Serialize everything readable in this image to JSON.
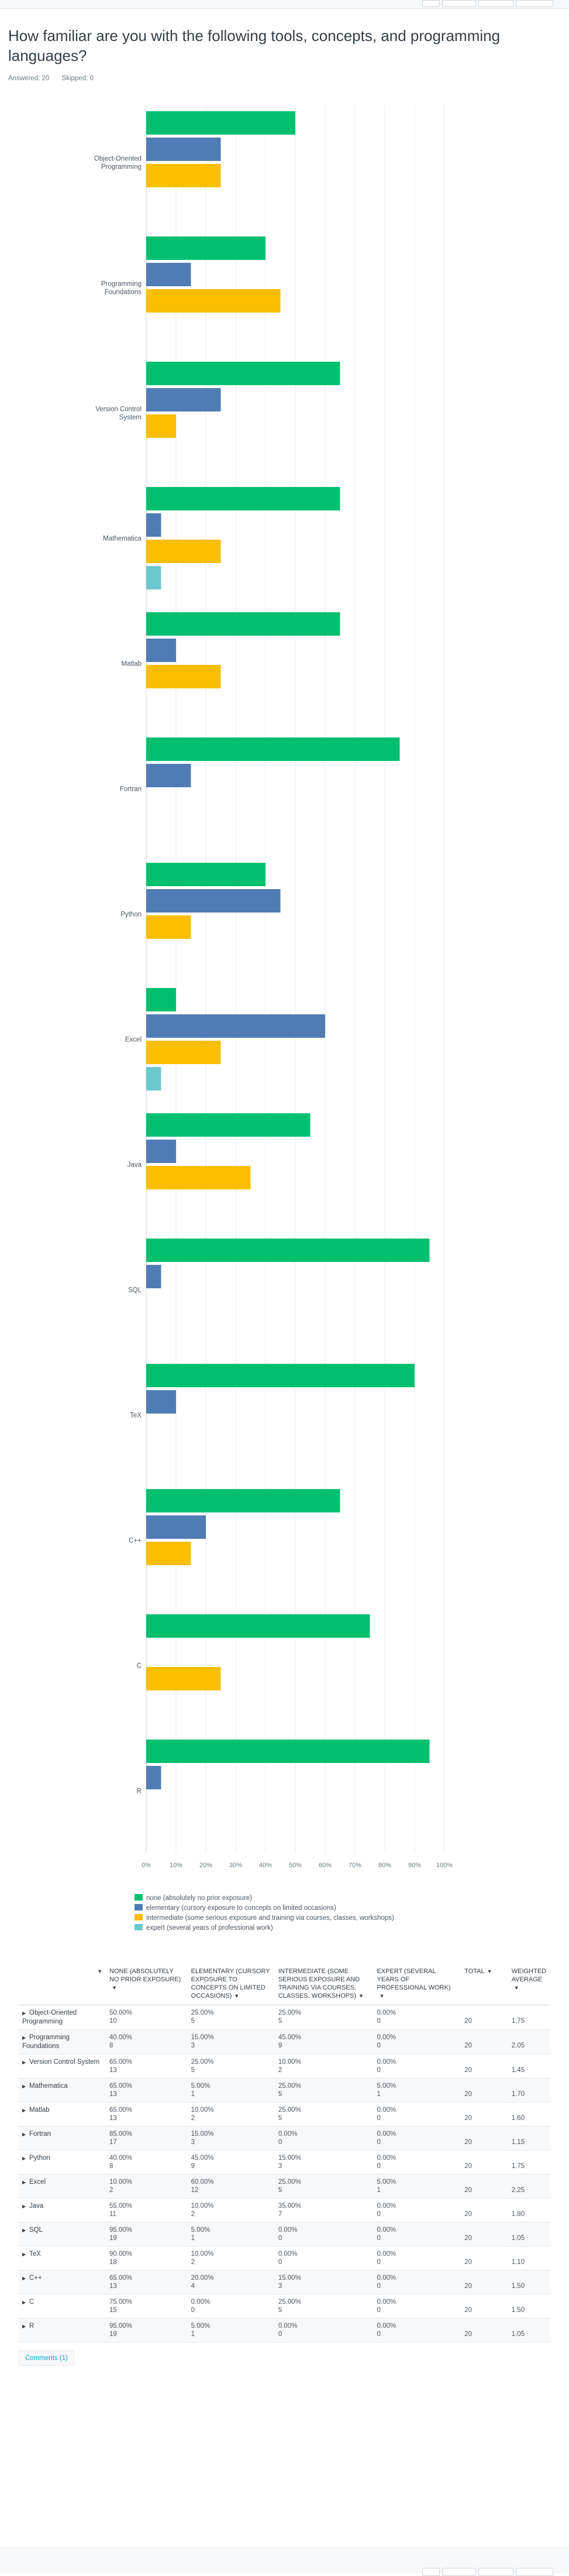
{
  "question": {
    "title": "How familiar are you with the following tools, concepts, and programming languages?",
    "answered": "Answered: 20",
    "skipped": "Skipped: 0"
  },
  "chart_data": {
    "type": "bar",
    "orientation": "horizontal",
    "categories": [
      "Object-Oriented Programming",
      "Programming Foundations",
      "Version Control System",
      "Mathematica",
      "Matlab",
      "Fortran",
      "Python",
      "Excel",
      "Java",
      "SQL",
      "TeX",
      "C++",
      "C",
      "R"
    ],
    "series": [
      {
        "name": "none (absolutely no prior exposure)",
        "color": "#00bf6f",
        "values": [
          50,
          40,
          65,
          65,
          65,
          85,
          40,
          10,
          55,
          95,
          90,
          65,
          75,
          95
        ]
      },
      {
        "name": "elementary (cursory exposure to concepts on limited occasions)",
        "color": "#507cb6",
        "values": [
          25,
          15,
          25,
          5,
          10,
          15,
          45,
          60,
          10,
          5,
          10,
          20,
          0,
          5
        ]
      },
      {
        "name": "intermediate (some serious exposure and training via courses, classes, workshops)",
        "color": "#f9be00",
        "values": [
          25,
          45,
          10,
          25,
          25,
          0,
          15,
          25,
          35,
          0,
          0,
          15,
          25,
          0
        ]
      },
      {
        "name": "expert (several years of professional work)",
        "color": "#6bc8cd",
        "values": [
          0,
          0,
          0,
          5,
          0,
          0,
          0,
          5,
          0,
          0,
          0,
          0,
          0,
          0
        ]
      }
    ],
    "xticks": [
      "0%",
      "10%",
      "20%",
      "30%",
      "40%",
      "50%",
      "60%",
      "70%",
      "80%",
      "90%",
      "100%"
    ],
    "xlim": [
      0,
      100
    ],
    "grid": true,
    "legend_placement": "bottom"
  },
  "table": {
    "headers": [
      "NONE (ABSOLUTELY NO PRIOR EXPOSURE)",
      "ELEMENTARY (CURSORY EXPOSURE TO CONCEPTS ON LIMITED OCCASIONS)",
      "INTERMEDIATE (SOME SERIOUS EXPOSURE AND TRAINING VIA COURSES, CLASSES, WORKSHOPS)",
      "EXPERT (SEVERAL YEARS OF PROFESSIONAL WORK)",
      "TOTAL",
      "WEIGHTED AVERAGE"
    ],
    "rows": [
      {
        "label": "Object-Oriented Programming",
        "cells": [
          [
            "50.00%",
            "10"
          ],
          [
            "25.00%",
            "5"
          ],
          [
            "25.00%",
            "5"
          ],
          [
            "0.00%",
            "0"
          ]
        ],
        "total": "20",
        "avg": "1.75"
      },
      {
        "label": "Programming Foundations",
        "cells": [
          [
            "40.00%",
            "8"
          ],
          [
            "15.00%",
            "3"
          ],
          [
            "45.00%",
            "9"
          ],
          [
            "0.00%",
            "0"
          ]
        ],
        "total": "20",
        "avg": "2.05"
      },
      {
        "label": "Version Control System",
        "cells": [
          [
            "65.00%",
            "13"
          ],
          [
            "25.00%",
            "5"
          ],
          [
            "10.00%",
            "2"
          ],
          [
            "0.00%",
            "0"
          ]
        ],
        "total": "20",
        "avg": "1.45"
      },
      {
        "label": "Mathematica",
        "cells": [
          [
            "65.00%",
            "13"
          ],
          [
            "5.00%",
            "1"
          ],
          [
            "25.00%",
            "5"
          ],
          [
            "5.00%",
            "1"
          ]
        ],
        "total": "20",
        "avg": "1.70"
      },
      {
        "label": "Matlab",
        "cells": [
          [
            "65.00%",
            "13"
          ],
          [
            "10.00%",
            "2"
          ],
          [
            "25.00%",
            "5"
          ],
          [
            "0.00%",
            "0"
          ]
        ],
        "total": "20",
        "avg": "1.60"
      },
      {
        "label": "Fortran",
        "cells": [
          [
            "85.00%",
            "17"
          ],
          [
            "15.00%",
            "3"
          ],
          [
            "0.00%",
            "0"
          ],
          [
            "0.00%",
            "0"
          ]
        ],
        "total": "20",
        "avg": "1.15"
      },
      {
        "label": "Python",
        "cells": [
          [
            "40.00%",
            "8"
          ],
          [
            "45.00%",
            "9"
          ],
          [
            "15.00%",
            "3"
          ],
          [
            "0.00%",
            "0"
          ]
        ],
        "total": "20",
        "avg": "1.75"
      },
      {
        "label": "Excel",
        "cells": [
          [
            "10.00%",
            "2"
          ],
          [
            "60.00%",
            "12"
          ],
          [
            "25.00%",
            "5"
          ],
          [
            "5.00%",
            "1"
          ]
        ],
        "total": "20",
        "avg": "2.25"
      },
      {
        "label": "Java",
        "cells": [
          [
            "55.00%",
            "11"
          ],
          [
            "10.00%",
            "2"
          ],
          [
            "35.00%",
            "7"
          ],
          [
            "0.00%",
            "0"
          ]
        ],
        "total": "20",
        "avg": "1.80"
      },
      {
        "label": "SQL",
        "cells": [
          [
            "95.00%",
            "19"
          ],
          [
            "5.00%",
            "1"
          ],
          [
            "0.00%",
            "0"
          ],
          [
            "0.00%",
            "0"
          ]
        ],
        "total": "20",
        "avg": "1.05"
      },
      {
        "label": "TeX",
        "cells": [
          [
            "90.00%",
            "18"
          ],
          [
            "10.00%",
            "2"
          ],
          [
            "0.00%",
            "0"
          ],
          [
            "0.00%",
            "0"
          ]
        ],
        "total": "20",
        "avg": "1.10"
      },
      {
        "label": "C++",
        "cells": [
          [
            "65.00%",
            "13"
          ],
          [
            "20.00%",
            "4"
          ],
          [
            "15.00%",
            "3"
          ],
          [
            "0.00%",
            "0"
          ]
        ],
        "total": "20",
        "avg": "1.50"
      },
      {
        "label": "C",
        "cells": [
          [
            "75.00%",
            "15"
          ],
          [
            "0.00%",
            "0"
          ],
          [
            "25.00%",
            "5"
          ],
          [
            "0.00%",
            "0"
          ]
        ],
        "total": "20",
        "avg": "1.50"
      },
      {
        "label": "R",
        "cells": [
          [
            "95.00%",
            "19"
          ],
          [
            "5.00%",
            "1"
          ],
          [
            "0.00%",
            "0"
          ],
          [
            "0.00%",
            "0"
          ]
        ],
        "total": "20",
        "avg": "1.05"
      }
    ],
    "comments_link": "Comments (1)"
  }
}
